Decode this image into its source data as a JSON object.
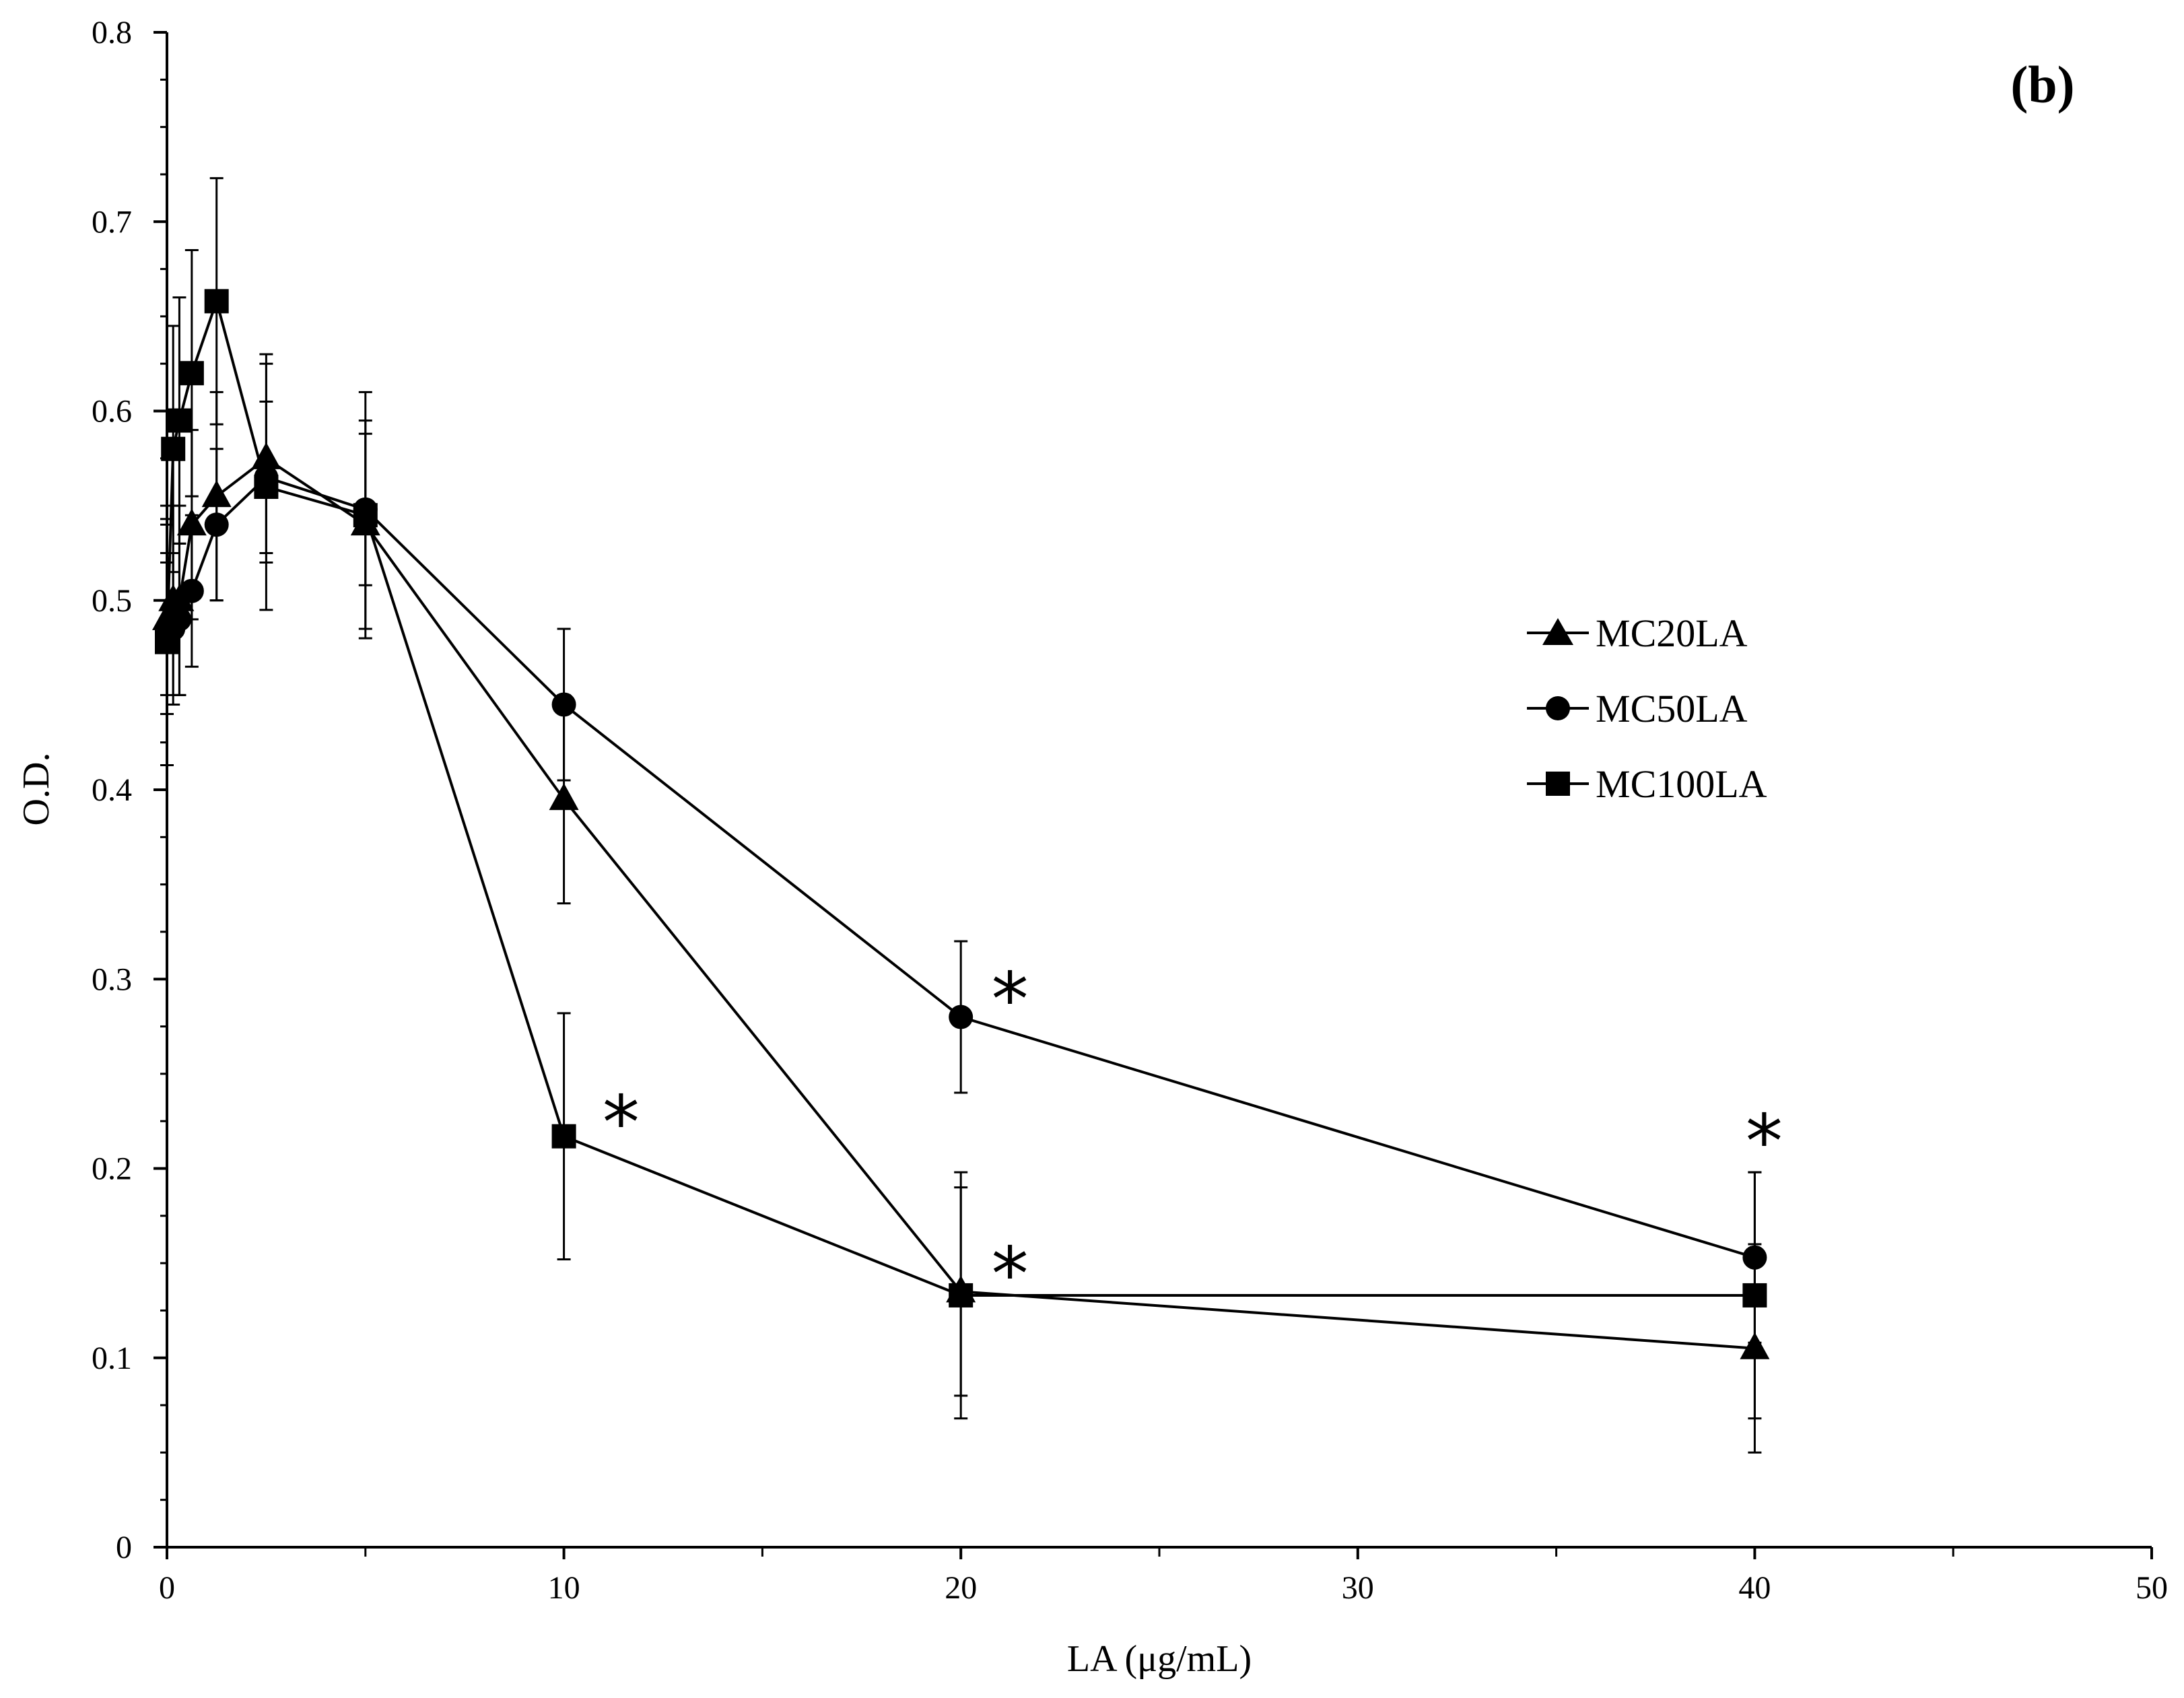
{
  "chart_data": {
    "type": "line",
    "panel_label": "(b)",
    "xlabel": "LA (μg/mL)",
    "ylabel": "O.D.",
    "xlim": [
      0,
      50
    ],
    "ylim": [
      0,
      0.8
    ],
    "x_ticks": [
      0,
      10,
      20,
      30,
      40,
      50
    ],
    "x_tick_labels": [
      "0",
      "10",
      "20",
      "30",
      "40",
      "50"
    ],
    "x_minor_ticks": [
      5,
      15,
      25,
      35,
      45
    ],
    "y_ticks": [
      0,
      0.1,
      0.2,
      0.3,
      0.4,
      0.5,
      0.6,
      0.7,
      0.8
    ],
    "y_tick_labels": [
      "0",
      "0.1",
      "0.2",
      "0.3",
      "0.4",
      "0.5",
      "0.6",
      "0.7",
      "0.8"
    ],
    "grid": false,
    "legend_position": "right-middle",
    "colors": {
      "ink": "#000000",
      "background": "#ffffff"
    },
    "x": [
      0,
      0.156,
      0.3125,
      0.625,
      1.25,
      2.5,
      5,
      10,
      20,
      40
    ],
    "series": [
      {
        "name": "MC20LA",
        "marker": "triangle",
        "values": [
          0.49,
          0.5,
          0.5,
          0.54,
          0.555,
          0.575,
          0.54,
          0.395,
          0.135,
          0.105
        ],
        "errors": [
          0.05,
          0.05,
          0.05,
          0.05,
          0.055,
          0.055,
          0.055,
          0.055,
          0.055,
          0.055
        ]
      },
      {
        "name": "MC50LA",
        "marker": "circle",
        "values": [
          0.48,
          0.485,
          0.49,
          0.505,
          0.54,
          0.565,
          0.548,
          0.445,
          0.28,
          0.153
        ],
        "errors": [
          0.04,
          0.04,
          0.04,
          0.04,
          0.04,
          0.04,
          0.04,
          0.04,
          0.04,
          0.045
        ]
      },
      {
        "name": "MC100LA",
        "marker": "square",
        "values": [
          0.478,
          0.58,
          0.595,
          0.62,
          0.658,
          0.56,
          0.545,
          0.217,
          0.133,
          0.133
        ],
        "errors": [
          0.065,
          0.065,
          0.065,
          0.065,
          0.065,
          0.065,
          0.065,
          0.065,
          0.065,
          0.065
        ]
      }
    ],
    "annotations": [
      {
        "text": "*",
        "x": 11.2,
        "y": 0.215,
        "series": "MC100LA"
      },
      {
        "text": "*",
        "x": 21.0,
        "y": 0.28,
        "series": "MC50LA"
      },
      {
        "text": "*",
        "x": 21.0,
        "y": 0.135,
        "series": "MC20LA"
      },
      {
        "text": "*",
        "x": 40.0,
        "y": 0.205,
        "series": "MC50LA"
      }
    ]
  }
}
